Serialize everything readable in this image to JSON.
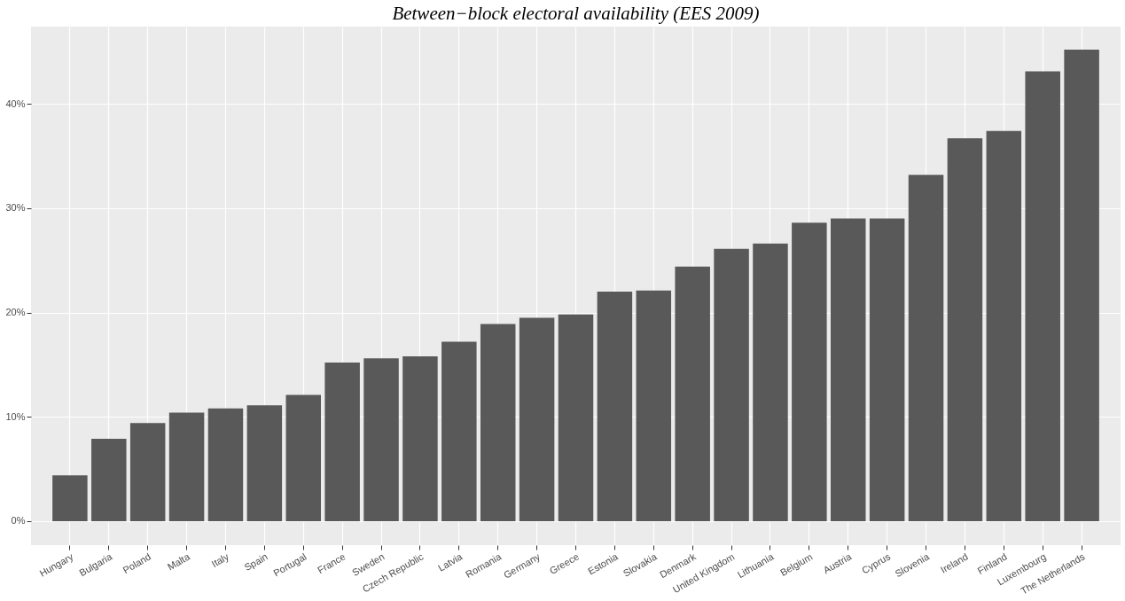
{
  "chart_data": {
    "type": "bar",
    "title": "Between−block electoral availability  (EES 2009)",
    "categories": [
      "Hungary",
      "Bulgaria",
      "Poland",
      "Malta",
      "Italy",
      "Spain",
      "Portugal",
      "France",
      "Sweden",
      "Czech Republic",
      "Latvia",
      "Romania",
      "Germany",
      "Greece",
      "Estonia",
      "Slovakia",
      "Denmark",
      "United Kingdom",
      "Lithuania",
      "Belgium",
      "Austria",
      "Cyprus",
      "Slovenia",
      "Ireland",
      "Finland",
      "Luxembourg",
      "The Netherlands"
    ],
    "values": [
      4.4,
      7.9,
      9.4,
      10.4,
      10.8,
      11.1,
      12.1,
      15.2,
      15.6,
      15.8,
      17.2,
      18.9,
      19.5,
      19.8,
      22.0,
      22.1,
      24.4,
      26.1,
      26.6,
      28.6,
      29.0,
      29.0,
      33.2,
      36.7,
      37.4,
      43.1,
      45.2
    ],
    "color": "#595959",
    "ylim": [
      -2.3,
      47.4
    ],
    "yticks": [
      {
        "value": 0,
        "label": "0%"
      },
      {
        "value": 10,
        "label": "10%"
      },
      {
        "value": 20,
        "label": "20%"
      },
      {
        "value": 30,
        "label": "30%"
      },
      {
        "value": 40,
        "label": "40%"
      }
    ],
    "grid": true
  }
}
